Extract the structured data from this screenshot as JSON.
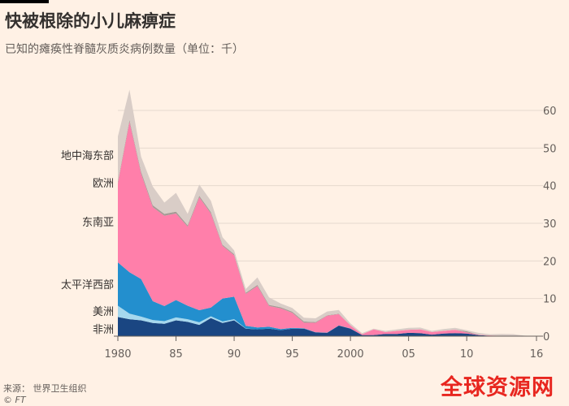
{
  "header": {
    "title": "快被根除的小儿麻痹症",
    "subtitle": "已知的瘫痪性脊髓灰质炎病例数量（单位：千）"
  },
  "footer": {
    "source": "来源：  世界卫生组织",
    "credit": "© FT"
  },
  "watermark": "全球资源网",
  "colors": {
    "background": "#fff1e5",
    "地中海东部": "#d9cdc7",
    "欧洲": "#a69a96",
    "东南亚": "#ff7faa",
    "太平洋西部": "#238fce",
    "美洲": "#a6d8ee",
    "非洲": "#1a4682"
  },
  "chart_data": {
    "type": "area",
    "stacked": true,
    "x": [
      1980,
      1981,
      1982,
      1983,
      1984,
      1985,
      1986,
      1987,
      1988,
      1989,
      1990,
      1991,
      1992,
      1993,
      1994,
      1995,
      1996,
      1997,
      1998,
      1999,
      2000,
      2001,
      2002,
      2003,
      2004,
      2005,
      2006,
      2007,
      2008,
      2009,
      2010,
      2011,
      2012,
      2013,
      2014,
      2015,
      2016
    ],
    "x_tick_labels": [
      "1980",
      "85",
      "90",
      "95",
      "2000",
      "05",
      "10",
      "16"
    ],
    "x_tick_values": [
      1980,
      1985,
      1990,
      1995,
      2000,
      2005,
      2010,
      2016
    ],
    "y_ticks": [
      0,
      10,
      20,
      30,
      40,
      50,
      60
    ],
    "ylim": [
      0,
      65
    ],
    "y_axis_position": "right",
    "series": [
      {
        "name": "非洲",
        "values": [
          5.1,
          4.5,
          4.2,
          3.5,
          3.3,
          4.2,
          3.8,
          3.0,
          4.8,
          3.5,
          4.2,
          2.0,
          1.8,
          2.0,
          1.6,
          2.0,
          2.0,
          1.0,
          0.9,
          2.8,
          2.0,
          0.3,
          0.3,
          0.6,
          0.6,
          0.9,
          0.8,
          0.4,
          0.7,
          0.8,
          0.7,
          0.3,
          0.1,
          0.1,
          0.05,
          0.03,
          0.01
        ]
      },
      {
        "name": "美洲",
        "values": [
          3.0,
          1.5,
          1.0,
          0.8,
          0.7,
          0.8,
          0.7,
          0.7,
          0.5,
          0.4,
          0.3,
          0.05,
          0.02,
          0,
          0,
          0,
          0,
          0,
          0,
          0,
          0,
          0,
          0,
          0,
          0,
          0,
          0,
          0,
          0,
          0,
          0,
          0,
          0,
          0,
          0,
          0,
          0
        ]
      },
      {
        "name": "太平洋西部",
        "values": [
          11.5,
          11.0,
          10.0,
          5.0,
          4.0,
          4.6,
          3.6,
          3.2,
          2.3,
          6.1,
          6.0,
          0.7,
          0.5,
          0.5,
          0.3,
          0.2,
          0.1,
          0.05,
          0.05,
          0.05,
          0.05,
          0,
          0,
          0,
          0,
          0,
          0,
          0,
          0,
          0,
          0,
          0,
          0,
          0,
          0,
          0,
          0
        ]
      },
      {
        "name": "东南亚",
        "values": [
          21.0,
          40.0,
          28.0,
          25.0,
          24.0,
          23.0,
          21.0,
          30.0,
          25.0,
          14.0,
          11.0,
          8.5,
          11.0,
          5.5,
          5.5,
          4.0,
          1.5,
          2.5,
          4.5,
          3.0,
          0.8,
          0.2,
          1.5,
          0.5,
          0.8,
          0.8,
          1.0,
          0.7,
          0.7,
          0.9,
          0.3,
          0.1,
          0.1,
          0,
          0,
          0,
          0
        ]
      },
      {
        "name": "欧洲",
        "values": [
          0.5,
          0.5,
          0.5,
          0.5,
          0.5,
          0.5,
          0.4,
          0.4,
          0.4,
          0.3,
          0.3,
          0.3,
          0.3,
          0.3,
          0.3,
          0.3,
          0.3,
          0.2,
          0.1,
          0.1,
          0.05,
          0,
          0,
          0,
          0,
          0,
          0,
          0,
          0,
          0,
          0.3,
          0,
          0,
          0,
          0,
          0,
          0
        ]
      },
      {
        "name": "地中海东部",
        "values": [
          12.0,
          8.0,
          4.0,
          5.0,
          3.0,
          5.0,
          3.0,
          3.0,
          3.0,
          2.0,
          1.0,
          1.0,
          2.0,
          2.0,
          1.0,
          1.0,
          1.0,
          1.0,
          1.0,
          1.0,
          0.5,
          0.3,
          0.2,
          0.3,
          0.4,
          0.5,
          0.5,
          0.3,
          0.5,
          0.5,
          0.3,
          0.5,
          0.3,
          0.5,
          0.5,
          0.1,
          0.02
        ]
      }
    ]
  }
}
